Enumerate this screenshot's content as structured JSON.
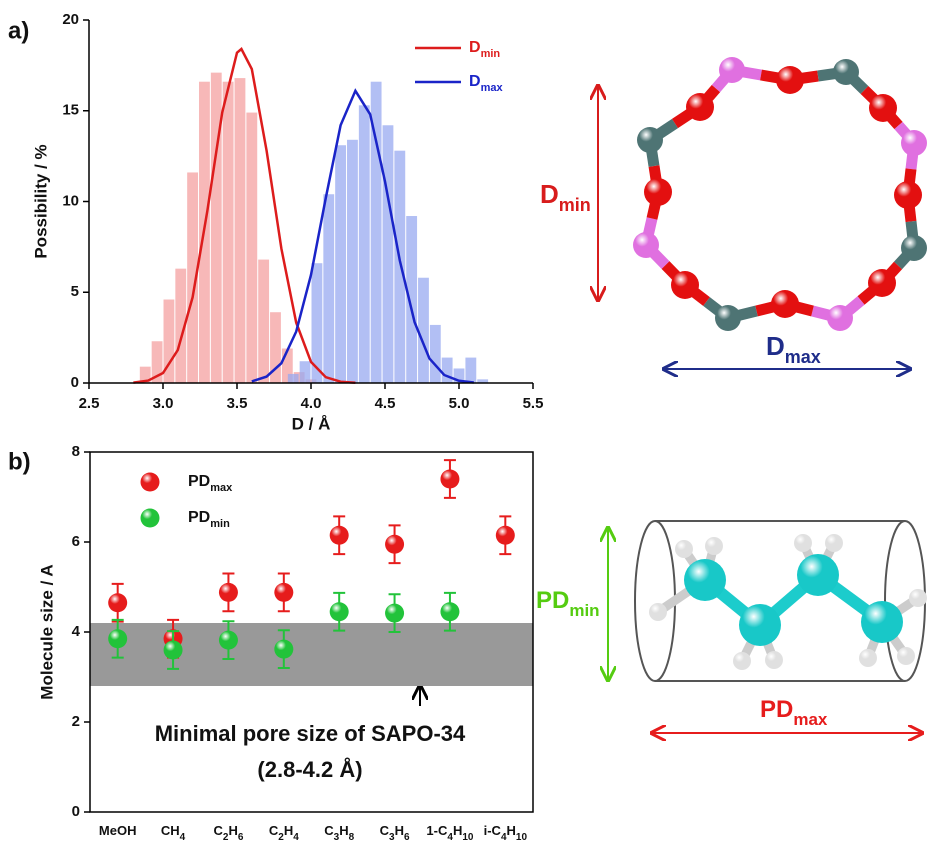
{
  "panels": [
    "a)",
    "b)"
  ],
  "chart_data": [
    {
      "type": "histogram",
      "xlabel": "D / Å",
      "ylabel": "Possibility / %",
      "xlim": [
        2.5,
        5.5
      ],
      "xticks": [
        2.5,
        {
          "value": 3,
          "label": "3.0"
        },
        3.5,
        {
          "value": 4,
          "label": "4.0"
        },
        4.5,
        {
          "value": 5,
          "label": "5.0"
        },
        5.5
      ],
      "ylim": [
        0,
        20
      ],
      "yticks": [
        0,
        5,
        10,
        15,
        20
      ],
      "legend": "upper right",
      "series": [
        {
          "name": "D",
          "sub": "min",
          "color": "#dd1c1c",
          "bar_color": "#f4a0a0",
          "bins": [
            2.84,
            2.92,
            3.0,
            3.08,
            3.16,
            3.24,
            3.32,
            3.4,
            3.48,
            3.56,
            3.64,
            3.72,
            3.8,
            3.88,
            3.96,
            4.04
          ],
          "counts": [
            0.9,
            2.3,
            4.6,
            6.3,
            11.6,
            16.6,
            17.1,
            16.6,
            16.8,
            14.9,
            6.8,
            3.9,
            1.9,
            0.6,
            0.2
          ],
          "curve": {
            "x": [
              2.8,
              2.9,
              3.0,
              3.1,
              3.2,
              3.3,
              3.4,
              3.5,
              3.53,
              3.6,
              3.7,
              3.8,
              3.9,
              4.0,
              4.1,
              4.2,
              4.3
            ],
            "values": [
              0.02,
              0.13,
              0.55,
              1.82,
              4.72,
              9.5,
              14.9,
              18.2,
              18.4,
              17.3,
              12.8,
              7.4,
              3.33,
              1.16,
              0.32,
              0.07,
              0.01
            ]
          }
        },
        {
          "name": "D",
          "sub": "max",
          "color": "#1a24c8",
          "bar_color": "#98aaf0",
          "bins": [
            3.84,
            3.92,
            4.0,
            4.08,
            4.16,
            4.24,
            4.32,
            4.4,
            4.48,
            4.56,
            4.64,
            4.72,
            4.8,
            4.88,
            4.96,
            5.04,
            5.12,
            5.2
          ],
          "counts": [
            0.5,
            1.2,
            6.6,
            10.4,
            13.1,
            13.4,
            15.3,
            16.6,
            14.2,
            12.8,
            9.2,
            5.8,
            3.2,
            1.4,
            0.8,
            1.4,
            0.2
          ],
          "curve": {
            "x": [
              3.6,
              3.7,
              3.8,
              3.9,
              4.0,
              4.1,
              4.2,
              4.3,
              4.4,
              4.5,
              4.6,
              4.7,
              4.8,
              4.9,
              5.0,
              5.1
            ],
            "values": [
              0.09,
              0.35,
              1.09,
              2.83,
              5.96,
              10.2,
              14.2,
              16.1,
              14.8,
              11.1,
              6.75,
              3.35,
              1.35,
              0.44,
              0.12,
              0.03
            ]
          }
        }
      ]
    },
    {
      "type": "errorbar",
      "ylabel": "Molecule size / A",
      "categories": [
        "MeOH",
        "CH4",
        "C2H6",
        "C2H4",
        "C3H8",
        "C3H6",
        "1-C4H10",
        "i-C4H10"
      ],
      "ylim": [
        0,
        8
      ],
      "yticks": [
        0,
        2,
        4,
        6,
        8
      ],
      "legend": "upper left",
      "band": [
        2.8,
        4.2
      ],
      "band_color": "#999999",
      "annotations": [
        "Minimal pore size of SAPO-34",
        "(2.8-4.2 Å)"
      ],
      "series": [
        {
          "name": "PD",
          "sub": "max",
          "color": "#e61c1c",
          "values": [
            4.65,
            3.85,
            4.88,
            4.88,
            6.15,
            5.95,
            7.4,
            6.15
          ],
          "errors": [
            0.42,
            0.42,
            0.42,
            0.42,
            0.42,
            0.42,
            0.42,
            0.42
          ]
        },
        {
          "name": "PD",
          "sub": "min",
          "color": "#22c33a",
          "values": [
            3.85,
            3.6,
            3.82,
            3.62,
            4.45,
            4.42,
            4.45,
            null
          ],
          "errors": [
            0.42,
            0.42,
            0.42,
            0.42,
            0.42,
            0.42,
            0.42,
            null
          ]
        }
      ]
    }
  ],
  "diagrams": {
    "ring": {
      "vertical": {
        "label": "D",
        "sub": "min"
      },
      "horizontal": {
        "label": "D",
        "sub": "max"
      }
    },
    "molecule": {
      "vertical": {
        "label": "PD",
        "sub": "min"
      },
      "horizontal": {
        "label": "PD",
        "sub": "max"
      }
    }
  }
}
